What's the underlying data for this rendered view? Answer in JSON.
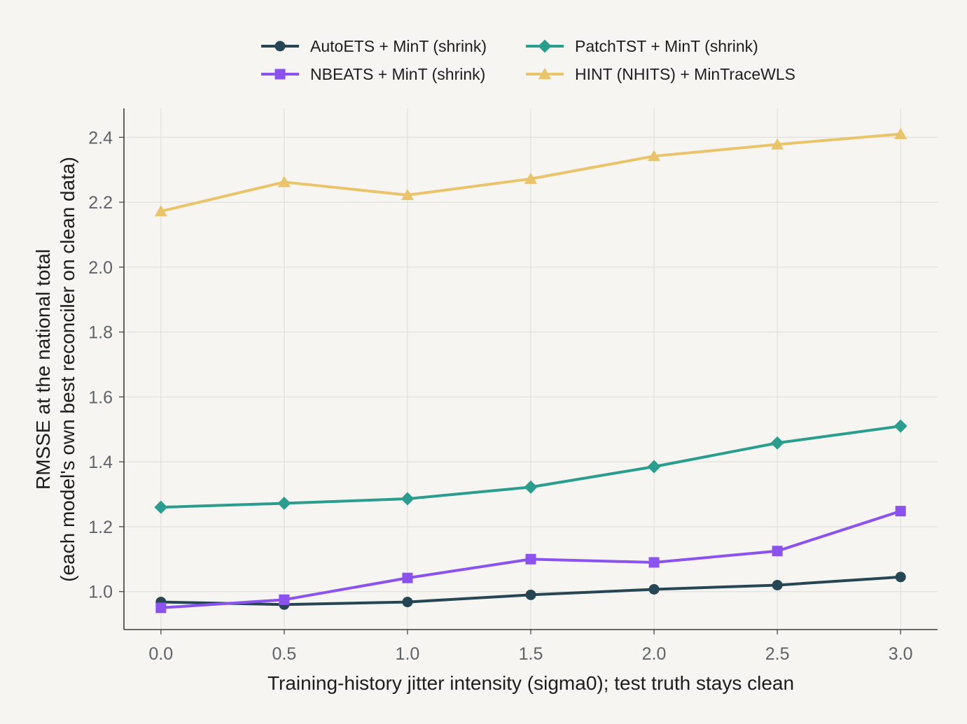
{
  "chart_data": {
    "type": "line",
    "x": [
      0.0,
      0.5,
      1.0,
      1.5,
      2.0,
      2.5,
      3.0
    ],
    "x_tick_labels": [
      "0.0",
      "0.5",
      "1.0",
      "1.5",
      "2.0",
      "2.5",
      "3.0"
    ],
    "y_ticks": [
      1.0,
      1.2,
      1.4,
      1.6,
      1.8,
      2.0,
      2.2,
      2.4
    ],
    "y_tick_labels": [
      "1.0",
      "1.2",
      "1.4",
      "1.6",
      "1.8",
      "2.0",
      "2.2",
      "2.4"
    ],
    "xlim": [
      -0.15,
      3.15
    ],
    "ylim": [
      0.883,
      2.489
    ],
    "xlabel": "Training-history jitter intensity (sigma0); test truth stays clean",
    "ylabel_line1": "RMSSE at the national total",
    "ylabel_line2": "(each model's own best reconciler on clean data)",
    "grid": true,
    "legend_position": "top-center",
    "series": [
      {
        "name": "AutoETS + MinT (shrink)",
        "color": "#264653",
        "marker": "circle",
        "values": [
          0.968,
          0.96,
          0.968,
          0.99,
          1.007,
          1.02,
          1.045
        ]
      },
      {
        "name": "NBEATS + MinT (shrink)",
        "color": "#8c52f0",
        "marker": "square",
        "values": [
          0.95,
          0.975,
          1.042,
          1.1,
          1.09,
          1.125,
          1.248
        ]
      },
      {
        "name": "PatchTST + MinT (shrink)",
        "color": "#2a9d8f",
        "marker": "diamond",
        "values": [
          1.26,
          1.272,
          1.286,
          1.322,
          1.385,
          1.458,
          1.51
        ]
      },
      {
        "name": "HINT (NHITS) + MinTraceWLS",
        "color": "#e9c46a",
        "marker": "triangle",
        "values": [
          2.172,
          2.262,
          2.222,
          2.272,
          2.342,
          2.378,
          2.41
        ]
      }
    ]
  }
}
